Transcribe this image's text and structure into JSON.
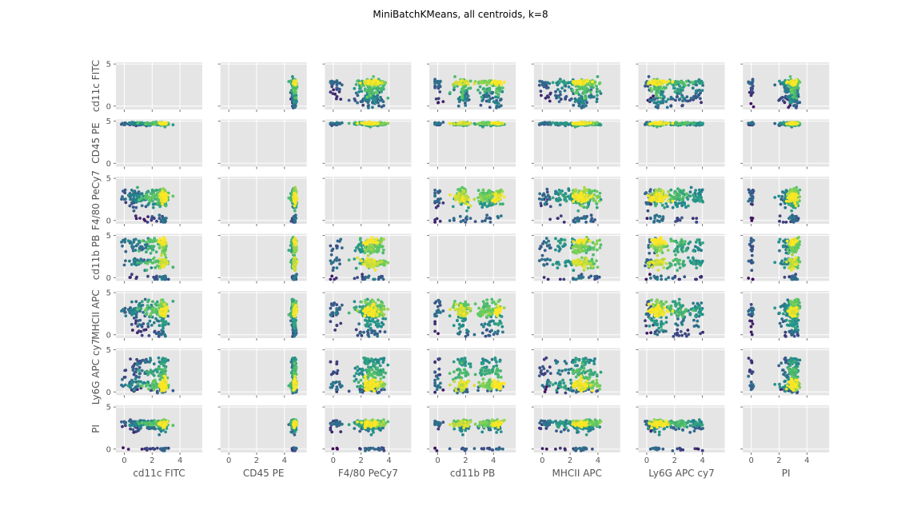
{
  "figure": {
    "title": "MiniBatchKMeans, all centroids, k=8"
  },
  "chart_data": {
    "type": "scatter",
    "title": "MiniBatchKMeans, all centroids, k=8",
    "variables": [
      "cd11c FITC",
      "CD45 PE",
      "F4/80 PeCy7",
      "cd11b PB",
      "MHCII APC",
      "Ly6G APC cy7",
      "PI"
    ],
    "xlim": [
      -0.6,
      5.6
    ],
    "ylim": [
      -0.4,
      5.2
    ],
    "x_ticks": [
      0,
      2,
      4
    ],
    "y_ticks": [
      0,
      5
    ],
    "grid": true,
    "diagonal": "empty",
    "colormap": "viridis",
    "colors": {
      "panel_bg": "#e5e5e5",
      "grid": "#ffffff",
      "text": "#555555"
    },
    "variable_clusters": {
      "cd11c FITC": [
        {
          "c": 2.8,
          "s": 0.12,
          "h": 1.0
        },
        {
          "c": 2.2,
          "s": 0.45,
          "h": 0.6
        },
        {
          "c": 1.2,
          "s": 0.5,
          "h": 0.25
        },
        {
          "c": 0.6,
          "s": 0.35,
          "h": 0.1
        }
      ],
      "CD45 PE": [
        {
          "c": 4.75,
          "s": 0.05,
          "h": 1.0
        },
        {
          "c": 4.65,
          "s": 0.08,
          "h": 0.5
        }
      ],
      "F4/80 PeCy7": [
        {
          "c": 2.7,
          "s": 0.25,
          "h": 1.0
        },
        {
          "c": 3.3,
          "s": 0.25,
          "h": 0.75
        },
        {
          "c": 2.1,
          "s": 0.3,
          "h": 0.45
        },
        {
          "c": 0.2,
          "s": 0.25,
          "h": 0.1
        }
      ],
      "cd11b PB": [
        {
          "c": 1.8,
          "s": 0.3,
          "h": 0.9
        },
        {
          "c": 3.5,
          "s": 0.35,
          "h": 0.7
        },
        {
          "c": 4.3,
          "s": 0.2,
          "h": 1.0
        },
        {
          "c": 0.0,
          "s": 0.2,
          "h": 0.1
        }
      ],
      "MHCII APC": [
        {
          "c": 2.7,
          "s": 0.3,
          "h": 1.0
        },
        {
          "c": 3.4,
          "s": 0.35,
          "h": 0.7
        },
        {
          "c": 1.5,
          "s": 0.4,
          "h": 0.35
        },
        {
          "c": 0.3,
          "s": 0.25,
          "h": 0.1
        }
      ],
      "Ly6G APC cy7": [
        {
          "c": 0.9,
          "s": 0.3,
          "h": 1.0
        },
        {
          "c": 2.3,
          "s": 0.35,
          "h": 0.55
        },
        {
          "c": 3.6,
          "s": 0.3,
          "h": 0.35
        },
        {
          "c": 0.2,
          "s": 0.2,
          "h": 0.1
        }
      ],
      "PI": [
        {
          "c": 2.95,
          "s": 0.18,
          "h": 1.0
        },
        {
          "c": 3.2,
          "s": 0.12,
          "h": 0.7
        },
        {
          "c": 2.5,
          "s": 0.3,
          "h": 0.3
        },
        {
          "c": 0.0,
          "s": 0.1,
          "h": 0.05
        }
      ]
    }
  }
}
